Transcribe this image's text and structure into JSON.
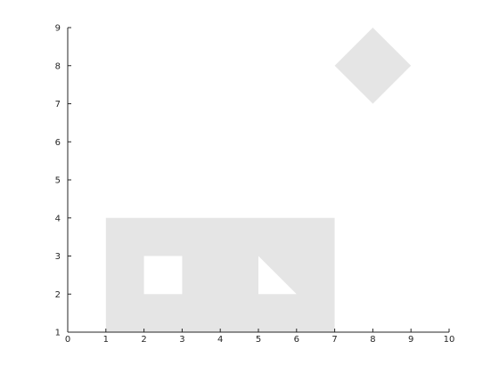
{
  "chart_data": {
    "type": "polygon",
    "title": "",
    "xlabel": "",
    "ylabel": "",
    "xlim": [
      0,
      10
    ],
    "ylim": [
      1,
      9
    ],
    "xticks": [
      0,
      1,
      2,
      3,
      4,
      5,
      6,
      7,
      8,
      9,
      10
    ],
    "yticks": [
      1,
      2,
      3,
      4,
      5,
      6,
      7,
      8,
      9
    ],
    "grid": false,
    "fill_color": "#e5e5e5",
    "hole_color": "#ffffff",
    "shapes": [
      {
        "name": "rectangle",
        "role": "fill",
        "points": [
          [
            1,
            1
          ],
          [
            7,
            1
          ],
          [
            7,
            4
          ],
          [
            1,
            4
          ]
        ]
      },
      {
        "name": "square-hole",
        "role": "hole",
        "points": [
          [
            2,
            2
          ],
          [
            3,
            2
          ],
          [
            3,
            3
          ],
          [
            2,
            3
          ]
        ]
      },
      {
        "name": "triangle-hole",
        "role": "hole",
        "points": [
          [
            5,
            2
          ],
          [
            6,
            2
          ],
          [
            5,
            3
          ]
        ]
      },
      {
        "name": "diamond",
        "role": "fill",
        "points": [
          [
            8,
            7
          ],
          [
            9,
            8
          ],
          [
            8,
            9
          ],
          [
            7,
            8
          ]
        ]
      }
    ]
  }
}
